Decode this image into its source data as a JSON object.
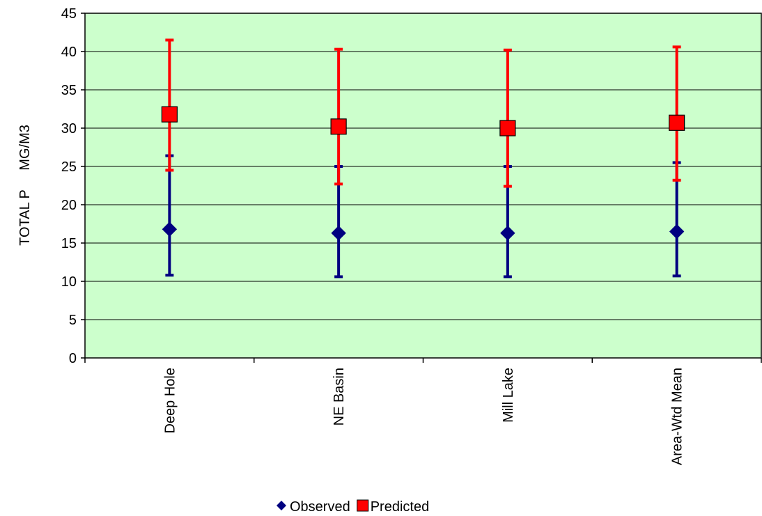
{
  "chart_data": {
    "type": "scatter",
    "title": "",
    "xlabel": "",
    "ylabel": "TOTAL P     MG/M3",
    "ylim": [
      0,
      45
    ],
    "ytick_step": 5,
    "grid": true,
    "legend_position": "bottom",
    "plot_background": "#ccffcc",
    "categories": [
      "Deep Hole",
      "NE Basin",
      "Mill Lake",
      "Area-Wtd Mean"
    ],
    "series": [
      {
        "name": "Observed",
        "color": "#000080",
        "marker": "diamond",
        "values": [
          16.8,
          16.3,
          16.3,
          16.5
        ],
        "error_low": [
          10.8,
          10.6,
          10.6,
          10.7
        ],
        "error_high": [
          26.4,
          25.0,
          25.0,
          25.5
        ]
      },
      {
        "name": "Predicted",
        "color": "#ff0000",
        "marker": "square",
        "values": [
          31.8,
          30.2,
          30.0,
          30.7
        ],
        "error_low": [
          24.5,
          22.7,
          22.4,
          23.2
        ],
        "error_high": [
          41.5,
          40.3,
          40.2,
          40.6
        ]
      }
    ]
  }
}
